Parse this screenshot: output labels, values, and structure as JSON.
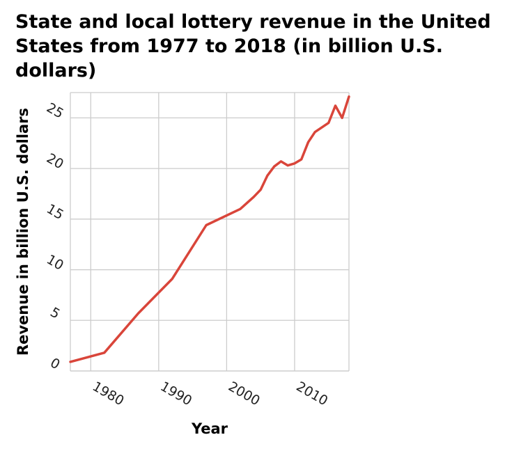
{
  "chart_data": {
    "type": "line",
    "title": "State and local lottery revenue in the United States from 1977 to 2018 (in billion U.S. dollars)",
    "xlabel": "Year",
    "ylabel": "Revenue in billion U.S. dollars",
    "xlim": [
      1977,
      2018
    ],
    "ylim": [
      0,
      27.5
    ],
    "xticks": [
      1980,
      1990,
      2000,
      2010
    ],
    "yticks": [
      0,
      5,
      10,
      15,
      20,
      25
    ],
    "grid": true,
    "line_color": "#d9453a",
    "series": [
      {
        "x": [
          1977,
          1982,
          1987,
          1992,
          1997,
          2002,
          2004,
          2005,
          2006,
          2007,
          2008,
          2009,
          2010,
          2011,
          2012,
          2013,
          2015,
          2016,
          2017,
          2018
        ],
        "y": [
          0.9,
          1.8,
          5.7,
          9.1,
          14.4,
          16.0,
          17.2,
          17.9,
          19.3,
          20.2,
          20.7,
          20.3,
          20.5,
          20.9,
          22.6,
          23.6,
          24.5,
          26.2,
          25.0,
          27.1
        ]
      }
    ]
  }
}
